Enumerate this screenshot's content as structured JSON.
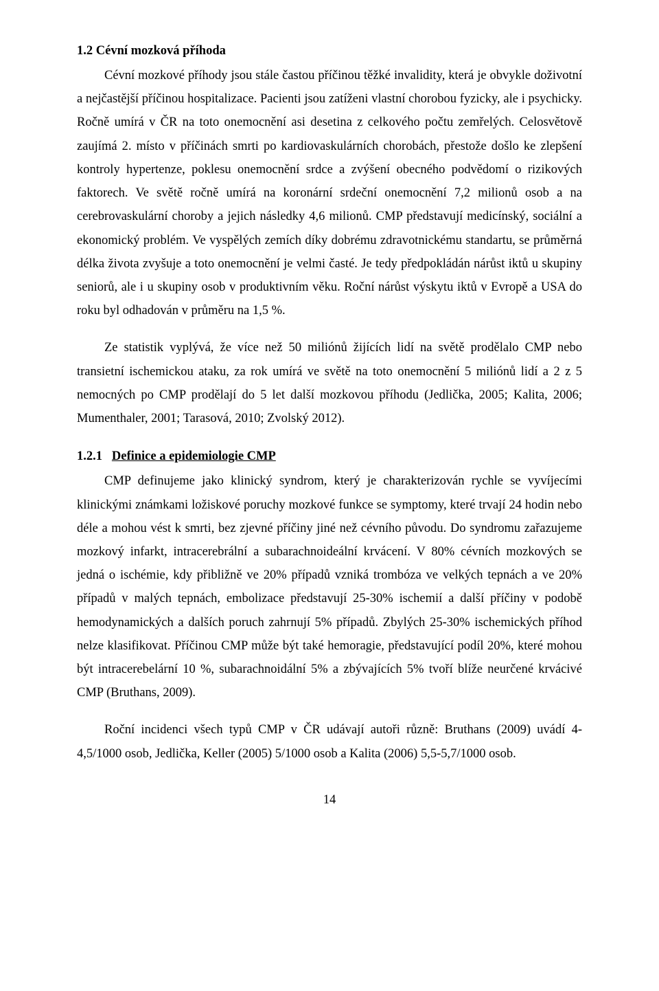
{
  "heading_1_2": "1.2   Cévní mozková příhoda",
  "para_1": "Cévní mozkové příhody jsou stále častou příčinou těžké invalidity, která je obvykle doživotní a nejčastější příčinou hospitalizace. Pacienti jsou zatíženi vlastní chorobou fyzicky, ale i psychicky. Ročně umírá v ČR na toto onemocnění asi desetina z celkového počtu zemřelých. Celosvětově zaujímá 2. místo v příčinách smrti po kardiovaskulárních chorobách, přestože došlo ke zlepšení kontroly hypertenze, poklesu onemocnění srdce a zvýšení obecného podvědomí o rizikových faktorech. Ve světě ročně umírá na koronární srdeční onemocnění 7,2 milionů osob a na cerebrovaskulární choroby a jejich následky 4,6 milionů. CMP představují medicínský, sociální a ekonomický problém. Ve vyspělých zemích díky dobrému zdravotnickému standartu, se průměrná délka života zvyšuje a toto onemocnění je velmi časté. Je tedy předpokládán nárůst iktů u skupiny seniorů, ale i u skupiny osob v produktivním věku. Roční nárůst výskytu iktů v Evropě a USA do roku byl odhadován v průměru na 1,5 %.",
  "para_2": "Ze statistik vyplývá, že více než 50 miliónů žijících lidí na světě prodělalo CMP nebo transietní ischemickou ataku, za rok umírá ve světě na toto onemocnění 5 miliónů lidí a 2 z 5 nemocných po CMP prodělají do 5 let další mozkovou příhodu (Jedlička, 2005; Kalita, 2006; Mumenthaler, 2001; Tarasová, 2010; Zvolský 2012).",
  "heading_1_2_1_num": "1.2.1",
  "heading_1_2_1_title": "Definice a epidemiologie CMP",
  "para_3": "CMP definujeme jako klinický syndrom, který je charakterizován rychle se vyvíjecími klinickými známkami ložiskové poruchy mozkové funkce se symptomy, které trvají 24 hodin nebo déle a mohou vést k smrti, bez zjevné příčiny jiné než cévního původu. Do syndromu zařazujeme mozkový infarkt, intracerebrální a subarachnoideální krvácení. V 80% cévních mozkových se jedná o ischémie, kdy přibližně ve 20% případů vzniká trombóza ve velkých tepnách a ve 20% případů v malých tepnách, embolizace představují 25-30% ischemií a další příčiny v podobě hemodynamických a dalších poruch zahrnují 5% případů. Zbylých 25-30% ischemických příhod nelze klasifikovat. Příčinou CMP může být také hemoragie, představující podíl 20%, které mohou být intracerebelární 10 %, subarachnoidální 5% a zbývajících 5% tvoří blíže neurčené krvácivé CMP (Bruthans, 2009).",
  "para_4": "Roční incidenci všech typů CMP v ČR udávají autoři různě: Bruthans (2009) uvádí 4-4,5/1000 osob, Jedlička, Keller (2005) 5/1000 osob a Kalita (2006) 5,5-5,7/1000 osob.",
  "page_number": "14"
}
